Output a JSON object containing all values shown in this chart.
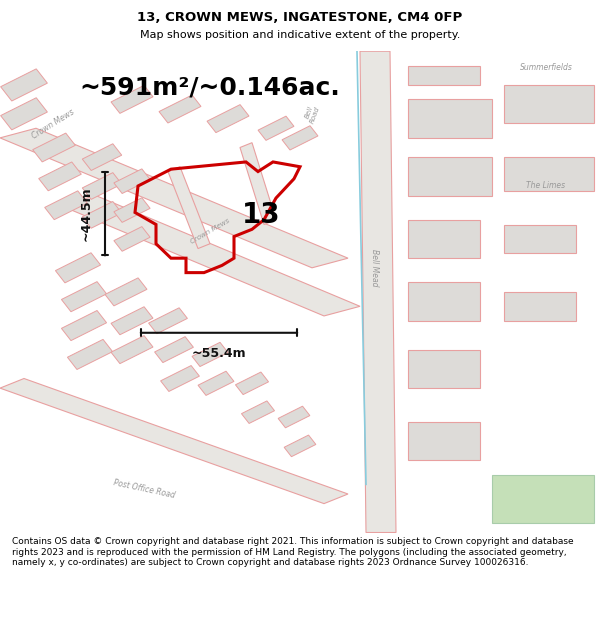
{
  "title": "13, CROWN MEWS, INGATESTONE, CM4 0FP",
  "subtitle": "Map shows position and indicative extent of the property.",
  "area_text": "~591m²/~0.146ac.",
  "label_13": "13",
  "dim_width": "~55.4m",
  "dim_height": "~44.5m",
  "map_bg": "#f0eeeb",
  "road_color": "#e8a0a0",
  "building_fill": "#dddbd8",
  "building_edge": "#e8a0a0",
  "property_color": "#cc0000",
  "dim_color": "#111111",
  "footer_text": "Contains OS data © Crown copyright and database right 2021. This information is subject to Crown copyright and database rights 2023 and is reproduced with the permission of HM Land Registry. The polygons (including the associated geometry, namely x, y co-ordinates) are subject to Crown copyright and database rights 2023 Ordnance Survey 100026316.",
  "title_fontsize": 9.5,
  "subtitle_fontsize": 8,
  "area_fontsize": 18,
  "dim_fontsize": 9,
  "footer_fontsize": 6.5
}
